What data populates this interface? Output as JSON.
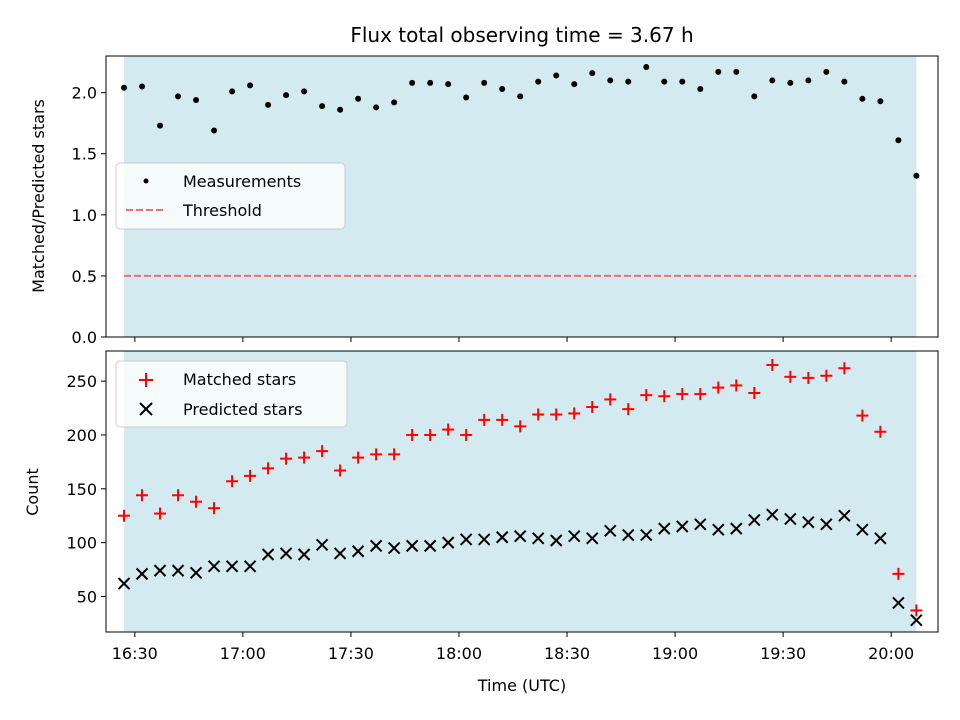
{
  "chart_data": {
    "title": "Flux total observing time = 3.67 h",
    "xlabel": "Time (UTC)",
    "x_unit": "time of day (UTC)",
    "xlim": [
      "16:22",
      "20:13"
    ],
    "x_ticks": [
      "16:30",
      "17:00",
      "17:30",
      "18:00",
      "18:30",
      "19:00",
      "19:30",
      "20:00"
    ],
    "observing_window": [
      "16:27",
      "20:07"
    ],
    "colors": {
      "window": "#d3eaf0",
      "measurements": "#000000",
      "threshold": "#f07070",
      "matched": "#ff0000",
      "predicted": "#000000"
    },
    "x": [
      "16:27",
      "16:32",
      "16:37",
      "16:42",
      "16:47",
      "16:52",
      "16:57",
      "17:02",
      "17:07",
      "17:12",
      "17:17",
      "17:22",
      "17:27",
      "17:32",
      "17:37",
      "17:42",
      "17:47",
      "17:52",
      "17:57",
      "18:02",
      "18:07",
      "18:12",
      "18:17",
      "18:22",
      "18:27",
      "18:32",
      "18:37",
      "18:42",
      "18:47",
      "18:52",
      "18:57",
      "19:02",
      "19:07",
      "19:12",
      "19:17",
      "19:22",
      "19:27",
      "19:32",
      "19:37",
      "19:42",
      "19:47",
      "19:52",
      "19:57",
      "20:02",
      "20:07"
    ],
    "panels": [
      {
        "type": "scatter",
        "ylabel": "Matched/Predicted stars",
        "ylim": [
          0,
          2.3
        ],
        "y_ticks": [
          "0.0",
          "0.5",
          "1.0",
          "1.5",
          "2.0"
        ],
        "legend_position": "center-left",
        "series": [
          {
            "name": "Measurements",
            "marker": "dot",
            "values": [
              2.04,
              2.05,
              1.73,
              1.97,
              1.94,
              1.69,
              2.01,
              2.06,
              1.9,
              1.98,
              2.01,
              1.89,
              1.86,
              1.95,
              1.88,
              1.92,
              2.08,
              2.08,
              2.07,
              1.96,
              2.08,
              2.03,
              1.97,
              2.09,
              2.14,
              2.07,
              2.16,
              2.1,
              2.09,
              2.21,
              2.09,
              2.09,
              2.03,
              2.17,
              2.17,
              1.97,
              2.1,
              2.08,
              2.1,
              2.17,
              2.09,
              1.95,
              1.93,
              1.61,
              1.32
            ]
          },
          {
            "name": "Threshold",
            "line": "dashed",
            "value": 0.5
          }
        ]
      },
      {
        "type": "scatter",
        "ylabel": "Count",
        "ylim": [
          17,
          278
        ],
        "y_ticks": [
          "50",
          "100",
          "150",
          "200",
          "250"
        ],
        "legend_position": "top-left",
        "series": [
          {
            "name": "Matched stars",
            "marker": "plus",
            "values": [
              125,
              144,
              127,
              144,
              138,
              132,
              157,
              162,
              169,
              178,
              179,
              185,
              167,
              179,
              182,
              182,
              200,
              200,
              205,
              200,
              214,
              214,
              208,
              219,
              219,
              220,
              226,
              233,
              224,
              237,
              236,
              238,
              238,
              244,
              246,
              239,
              265,
              254,
              253,
              255,
              262,
              218,
              203,
              71,
              37
            ]
          },
          {
            "name": "Predicted stars",
            "marker": "x",
            "values": [
              62,
              71,
              74,
              74,
              72,
              78,
              78,
              78,
              89,
              90,
              89,
              98,
              90,
              92,
              97,
              95,
              97,
              97,
              100,
              103,
              103,
              105,
              106,
              104,
              102,
              106,
              104,
              111,
              107,
              107,
              113,
              115,
              117,
              112,
              113,
              121,
              126,
              122,
              119,
              117,
              125,
              112,
              104,
              44,
              28
            ]
          }
        ]
      }
    ]
  }
}
